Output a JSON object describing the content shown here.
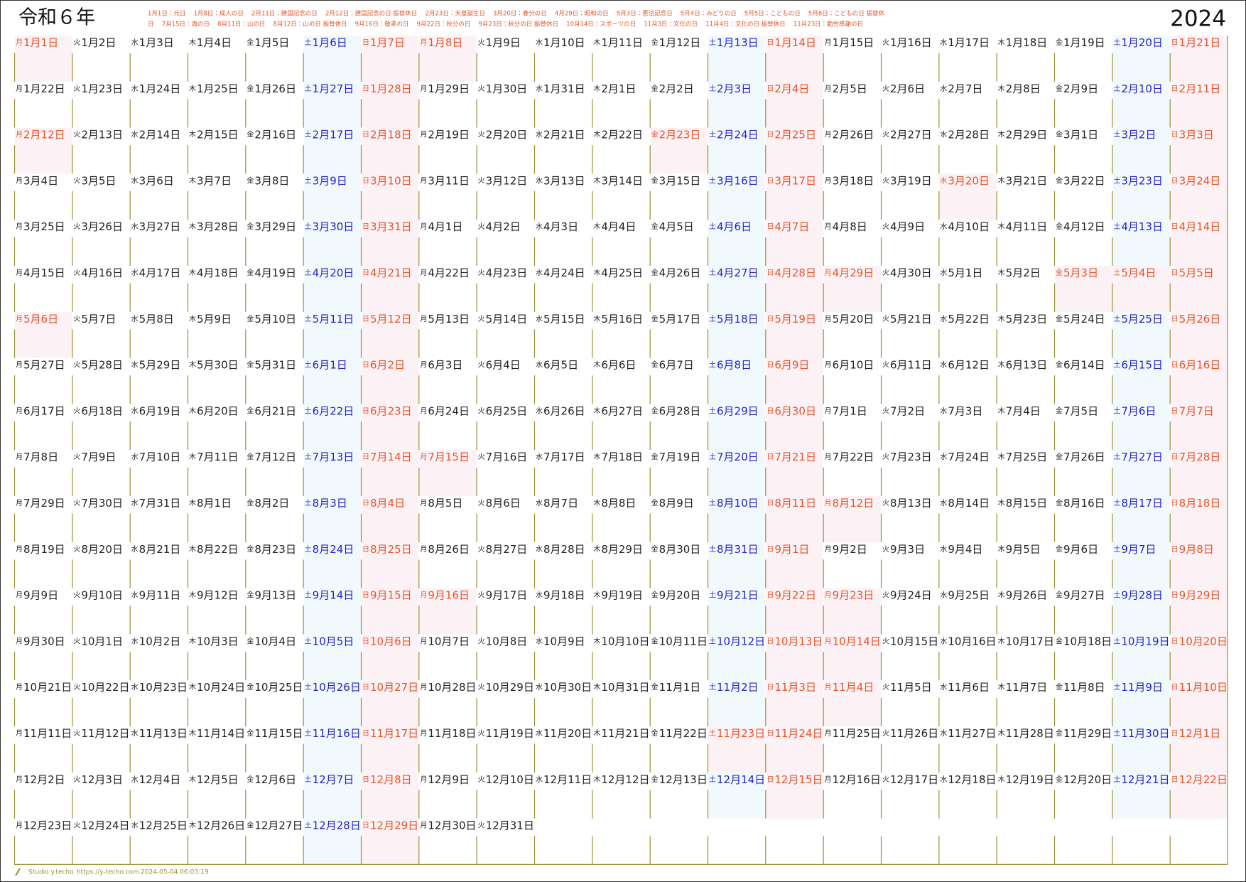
{
  "header": {
    "title": "令和６年",
    "year": "2024",
    "holidays": [
      "1月1日：元日　 1月8日：成人の日　 2月11日：建国記念の日　 2月12日：建国記念の日 振替休日　 2月23日：天皇誕生日　 3月20日：春分の日　 4月29日：昭和の日　 5月3日：憲法記念日　 5月4日：みどりの日　 5月5日：こどもの日　 5月6日：こどもの日 振替休",
      "日　 7月15日：海の日　 8月11日：山の日　 8月12日：山の日 振替休日　 9月16日：敬老の日　 9月22日：秋分の日　 9月23日：秋分の日 振替休日　 10月14日：スポーツの日　 11月3日：文化の日　 11月4日：文化の日 振替休日　 11月23日：勤労感謝の日"
    ]
  },
  "calendar": {
    "weekdays": [
      "月",
      "火",
      "水",
      "木",
      "金",
      "土",
      "日"
    ],
    "colors": {
      "text": "#222222",
      "saturday": "#2323c8",
      "holiday": "#e8532a",
      "saturday_bg": "#f2f9fc",
      "holiday_bg": "#fcf2f5",
      "line": "#9a9032"
    },
    "rows": [
      [
        {
          "d": "1月1日",
          "holiday": true
        },
        "1月2日",
        "1月3日",
        "1月4日",
        "1月5日",
        "1月6日",
        "1月7日",
        {
          "d": "1月8日",
          "holiday": true
        },
        "1月9日",
        "1月10日",
        "1月11日",
        "1月12日",
        "1月13日",
        "1月14日",
        "1月15日",
        "1月16日",
        "1月17日",
        "1月18日",
        "1月19日",
        "1月20日",
        "1月21日"
      ],
      [
        "1月22日",
        "1月23日",
        "1月24日",
        "1月25日",
        "1月26日",
        "1月27日",
        "1月28日",
        "1月29日",
        "1月30日",
        "1月31日",
        "2月1日",
        "2月2日",
        "2月3日",
        "2月4日",
        "2月5日",
        "2月6日",
        "2月7日",
        "2月8日",
        "2月9日",
        "2月10日",
        {
          "d": "2月11日",
          "holiday": true
        }
      ],
      [
        {
          "d": "2月12日",
          "holiday": true
        },
        "2月13日",
        "2月14日",
        "2月15日",
        "2月16日",
        "2月17日",
        "2月18日",
        "2月19日",
        "2月20日",
        "2月21日",
        "2月22日",
        {
          "d": "2月23日",
          "holiday": true
        },
        "2月24日",
        "2月25日",
        "2月26日",
        "2月27日",
        "2月28日",
        "2月29日",
        "3月1日",
        "3月2日",
        "3月3日"
      ],
      [
        "3月4日",
        "3月5日",
        "3月6日",
        "3月7日",
        "3月8日",
        "3月9日",
        "3月10日",
        "3月11日",
        "3月12日",
        "3月13日",
        "3月14日",
        "3月15日",
        "3月16日",
        "3月17日",
        "3月18日",
        "3月19日",
        {
          "d": "3月20日",
          "holiday": true
        },
        "3月21日",
        "3月22日",
        "3月23日",
        "3月24日"
      ],
      [
        "3月25日",
        "3月26日",
        "3月27日",
        "3月28日",
        "3月29日",
        "3月30日",
        "3月31日",
        "4月1日",
        "4月2日",
        "4月3日",
        "4月4日",
        "4月5日",
        "4月6日",
        "4月7日",
        "4月8日",
        "4月9日",
        "4月10日",
        "4月11日",
        "4月12日",
        "4月13日",
        "4月14日"
      ],
      [
        "4月15日",
        "4月16日",
        "4月17日",
        "4月18日",
        "4月19日",
        "4月20日",
        "4月21日",
        "4月22日",
        "4月23日",
        "4月24日",
        "4月25日",
        "4月26日",
        "4月27日",
        "4月28日",
        {
          "d": "4月29日",
          "holiday": true
        },
        "4月30日",
        "5月1日",
        "5月2日",
        {
          "d": "5月3日",
          "holiday": true
        },
        {
          "d": "5月4日",
          "holiday": true
        },
        {
          "d": "5月5日",
          "holiday": true
        }
      ],
      [
        {
          "d": "5月6日",
          "holiday": true
        },
        "5月7日",
        "5月8日",
        "5月9日",
        "5月10日",
        "5月11日",
        "5月12日",
        "5月13日",
        "5月14日",
        "5月15日",
        "5月16日",
        "5月17日",
        "5月18日",
        "5月19日",
        "5月20日",
        "5月21日",
        "5月22日",
        "5月23日",
        "5月24日",
        "5月25日",
        "5月26日"
      ],
      [
        "5月27日",
        "5月28日",
        "5月29日",
        "5月30日",
        "5月31日",
        "6月1日",
        "6月2日",
        "6月3日",
        "6月4日",
        "6月5日",
        "6月6日",
        "6月7日",
        "6月8日",
        "6月9日",
        "6月10日",
        "6月11日",
        "6月12日",
        "6月13日",
        "6月14日",
        "6月15日",
        "6月16日"
      ],
      [
        "6月17日",
        "6月18日",
        "6月19日",
        "6月20日",
        "6月21日",
        "6月22日",
        "6月23日",
        "6月24日",
        "6月25日",
        "6月26日",
        "6月27日",
        "6月28日",
        "6月29日",
        "6月30日",
        "7月1日",
        "7月2日",
        "7月3日",
        "7月4日",
        "7月5日",
        "7月6日",
        "7月7日"
      ],
      [
        "7月8日",
        "7月9日",
        "7月10日",
        "7月11日",
        "7月12日",
        "7月13日",
        "7月14日",
        {
          "d": "7月15日",
          "holiday": true
        },
        "7月16日",
        "7月17日",
        "7月18日",
        "7月19日",
        "7月20日",
        "7月21日",
        "7月22日",
        "7月23日",
        "7月24日",
        "7月25日",
        "7月26日",
        "7月27日",
        "7月28日"
      ],
      [
        "7月29日",
        "7月30日",
        "7月31日",
        "8月1日",
        "8月2日",
        "8月3日",
        "8月4日",
        "8月5日",
        "8月6日",
        "8月7日",
        "8月8日",
        "8月9日",
        "8月10日",
        {
          "d": "8月11日",
          "holiday": true
        },
        {
          "d": "8月12日",
          "holiday": true
        },
        "8月13日",
        "8月14日",
        "8月15日",
        "8月16日",
        "8月17日",
        "8月18日"
      ],
      [
        "8月19日",
        "8月20日",
        "8月21日",
        "8月22日",
        "8月23日",
        "8月24日",
        "8月25日",
        "8月26日",
        "8月27日",
        "8月28日",
        "8月29日",
        "8月30日",
        "8月31日",
        "9月1日",
        "9月2日",
        "9月3日",
        "9月4日",
        "9月5日",
        "9月6日",
        "9月7日",
        "9月8日"
      ],
      [
        "9月9日",
        "9月10日",
        "9月11日",
        "9月12日",
        "9月13日",
        "9月14日",
        "9月15日",
        {
          "d": "9月16日",
          "holiday": true
        },
        "9月17日",
        "9月18日",
        "9月19日",
        "9月20日",
        "9月21日",
        {
          "d": "9月22日",
          "holiday": true
        },
        {
          "d": "9月23日",
          "holiday": true
        },
        "9月24日",
        "9月25日",
        "9月26日",
        "9月27日",
        "9月28日",
        "9月29日"
      ],
      [
        "9月30日",
        "10月1日",
        "10月2日",
        "10月3日",
        "10月4日",
        "10月5日",
        "10月6日",
        "10月7日",
        "10月8日",
        "10月9日",
        "10月10日",
        "10月11日",
        "10月12日",
        "10月13日",
        {
          "d": "10月14日",
          "holiday": true
        },
        "10月15日",
        "10月16日",
        "10月17日",
        "10月18日",
        "10月19日",
        "10月20日"
      ],
      [
        "10月21日",
        "10月22日",
        "10月23日",
        "10月24日",
        "10月25日",
        "10月26日",
        "10月27日",
        "10月28日",
        "10月29日",
        "10月30日",
        "10月31日",
        "11月1日",
        "11月2日",
        {
          "d": "11月3日",
          "holiday": true
        },
        {
          "d": "11月4日",
          "holiday": true
        },
        "11月5日",
        "11月6日",
        "11月7日",
        "11月8日",
        "11月9日",
        "11月10日"
      ],
      [
        "11月11日",
        "11月12日",
        "11月13日",
        "11月14日",
        "11月15日",
        "11月16日",
        "11月17日",
        "11月18日",
        "11月19日",
        "11月20日",
        "11月21日",
        "11月22日",
        {
          "d": "11月23日",
          "holiday": true
        },
        "11月24日",
        "11月25日",
        "11月26日",
        "11月27日",
        "11月28日",
        "11月29日",
        "11月30日",
        "12月1日"
      ],
      [
        "12月2日",
        "12月3日",
        "12月4日",
        "12月5日",
        "12月6日",
        "12月7日",
        "12月8日",
        "12月9日",
        "12月10日",
        "12月11日",
        "12月12日",
        "12月13日",
        "12月14日",
        "12月15日",
        "12月16日",
        "12月17日",
        "12月18日",
        "12月19日",
        "12月20日",
        "12月21日",
        "12月22日"
      ],
      [
        "12月23日",
        "12月24日",
        "12月25日",
        "12月26日",
        "12月27日",
        "12月28日",
        "12月29日",
        "12月30日",
        "12月31日"
      ]
    ]
  },
  "footer": {
    "studio": "Studio y.techo",
    "url": "https://y-techo.com",
    "timestamp": "2024-05-04 06:03:19"
  }
}
